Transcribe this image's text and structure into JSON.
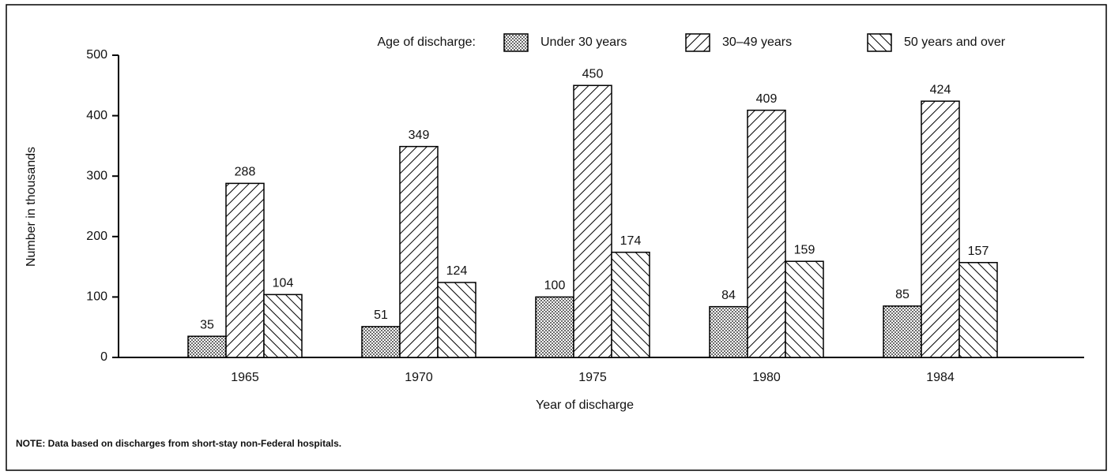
{
  "chart_data": {
    "type": "bar",
    "legend_title": "Age of discharge:",
    "categories": [
      "1965",
      "1970",
      "1975",
      "1980",
      "1984"
    ],
    "series": [
      {
        "name": "Under 30 years",
        "color": "#000000",
        "pattern": "dots",
        "values": [
          35,
          51,
          100,
          84,
          85
        ]
      },
      {
        "name": "30–49 years",
        "color": "#000000",
        "pattern": "hatch-back",
        "values": [
          288,
          349,
          450,
          409,
          424
        ]
      },
      {
        "name": "50 years and over",
        "color": "#000000",
        "pattern": "hatch-forward",
        "values": [
          104,
          124,
          174,
          159,
          157
        ]
      }
    ],
    "ylim": [
      0,
      500
    ],
    "yticks": [
      0,
      100,
      200,
      300,
      400,
      500
    ],
    "xlabel": "Year of discharge",
    "ylabel": "Number in thousands",
    "note": "NOTE: Data based on discharges from short-stay non-Federal hospitals.",
    "legend": "top-right",
    "grid": false
  }
}
